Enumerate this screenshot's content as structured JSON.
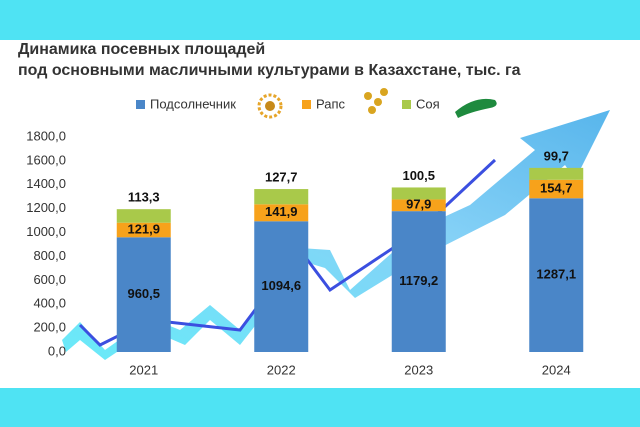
{
  "chart_data": {
    "type": "stacked_bar",
    "title": [
      "Динамика посевных площадей",
      "под основными масличными культурами в Казахстане, тыс. га"
    ],
    "categories": [
      "2021",
      "2022",
      "2023",
      "2024"
    ],
    "series": [
      {
        "name": "Подсолнечник",
        "color": "#4a86c8",
        "values": [
          960.5,
          1094.6,
          1179.2,
          1287.1
        ],
        "value_labels": [
          "960,5",
          "1094,6",
          "1179,2",
          "1287,1"
        ]
      },
      {
        "name": "Рапс",
        "color": "#f7a21b",
        "values": [
          121.9,
          141.9,
          97.9,
          154.7
        ],
        "value_labels": [
          "121,9",
          "141,9",
          "97,9",
          "154,7"
        ]
      },
      {
        "name": "Соя",
        "color": "#a9c94a",
        "values": [
          113.3,
          127.7,
          100.5,
          99.7
        ],
        "value_labels": [
          "113,3",
          "127,7",
          "100,5",
          "99,7"
        ]
      }
    ],
    "ylim": [
      0,
      1800
    ],
    "yticks": [
      {
        "value": 0,
        "label": "0,0"
      },
      {
        "value": 200,
        "label": "200,0"
      },
      {
        "value": 400,
        "label": "400,0"
      },
      {
        "value": 600,
        "label": "600,0"
      },
      {
        "value": 800,
        "label": "800,0"
      },
      {
        "value": 1000,
        "label": "1000,0"
      },
      {
        "value": 1200,
        "label": "1200,0"
      },
      {
        "value": 1400,
        "label": "1400,0"
      },
      {
        "value": 1600,
        "label": "1600,0"
      },
      {
        "value": 1800,
        "label": "1800,0"
      }
    ]
  }
}
